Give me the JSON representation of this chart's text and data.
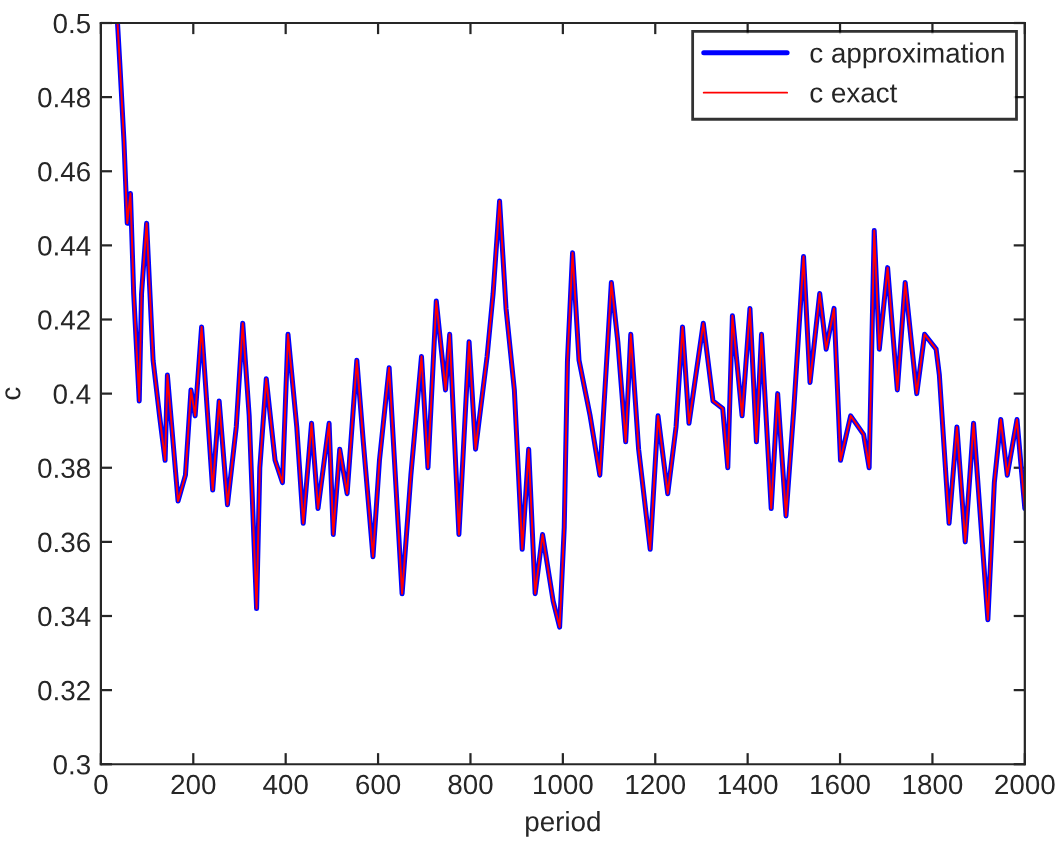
{
  "chart_data": {
    "type": "line",
    "xlabel": "period",
    "ylabel": "c",
    "xlim": [
      0,
      2000
    ],
    "xticks": [
      0,
      200,
      400,
      600,
      800,
      1000,
      1200,
      1400,
      1600,
      1800,
      2000
    ],
    "ylim": [
      0.3,
      0.5
    ],
    "yticks": [
      0.3,
      0.32,
      0.34,
      0.36,
      0.38,
      0.4,
      0.42,
      0.44,
      0.46,
      0.48,
      0.5
    ],
    "grid": false,
    "legend": "top right",
    "line_style": "solid",
    "marker": "none",
    "x": [
      36,
      41,
      50,
      57,
      64,
      71,
      83,
      88,
      99,
      113,
      127,
      139,
      144,
      167,
      183,
      195,
      204,
      218,
      242,
      256,
      274,
      293,
      307,
      321,
      337,
      344,
      358,
      377,
      393,
      405,
      424,
      438,
      456,
      470,
      494,
      503,
      517,
      533,
      554,
      568,
      589,
      603,
      624,
      652,
      671,
      694,
      708,
      726,
      746,
      755,
      775,
      797,
      811,
      836,
      849,
      863,
      877,
      895,
      912,
      926,
      940,
      956,
      979,
      993,
      1003,
      1010,
      1021,
      1035,
      1059,
      1080,
      1105,
      1119,
      1136,
      1147,
      1164,
      1189,
      1206,
      1227,
      1245,
      1259,
      1273,
      1304,
      1325,
      1346,
      1357,
      1367,
      1388,
      1405,
      1419,
      1430,
      1451,
      1465,
      1483,
      1500,
      1521,
      1535,
      1556,
      1570,
      1587,
      1601,
      1623,
      1651,
      1663,
      1674,
      1685,
      1703,
      1724,
      1741,
      1766,
      1783,
      1808,
      1815,
      1836,
      1853,
      1871,
      1889,
      1920,
      1934,
      1948,
      1962,
      1983,
      2000
    ],
    "series": [
      {
        "name": "c approximation",
        "color": "#0000ff",
        "values": [
          0.5,
          0.489,
          0.468,
          0.446,
          0.454,
          0.427,
          0.398,
          0.427,
          0.446,
          0.409,
          0.394,
          0.382,
          0.405,
          0.371,
          0.378,
          0.401,
          0.394,
          0.418,
          0.374,
          0.398,
          0.37,
          0.391,
          0.419,
          0.394,
          0.342,
          0.38,
          0.404,
          0.382,
          0.376,
          0.416,
          0.391,
          0.365,
          0.392,
          0.369,
          0.392,
          0.362,
          0.385,
          0.373,
          0.409,
          0.387,
          0.356,
          0.382,
          0.407,
          0.346,
          0.378,
          0.41,
          0.38,
          0.425,
          0.401,
          0.416,
          0.362,
          0.414,
          0.385,
          0.41,
          0.427,
          0.452,
          0.423,
          0.401,
          0.358,
          0.385,
          0.346,
          0.362,
          0.344,
          0.337,
          0.364,
          0.409,
          0.438,
          0.409,
          0.394,
          0.378,
          0.43,
          0.414,
          0.387,
          0.416,
          0.385,
          0.358,
          0.394,
          0.373,
          0.391,
          0.418,
          0.392,
          0.419,
          0.398,
          0.396,
          0.38,
          0.421,
          0.394,
          0.423,
          0.387,
          0.416,
          0.369,
          0.4,
          0.367,
          0.396,
          0.437,
          0.403,
          0.427,
          0.412,
          0.423,
          0.382,
          0.394,
          0.389,
          0.38,
          0.444,
          0.412,
          0.434,
          0.401,
          0.43,
          0.4,
          0.416,
          0.412,
          0.405,
          0.365,
          0.391,
          0.36,
          0.392,
          0.339,
          0.376,
          0.393,
          0.378,
          0.393,
          0.369
        ]
      },
      {
        "name": "c exact",
        "color": "#ff0000",
        "values": [
          0.5,
          0.489,
          0.468,
          0.446,
          0.454,
          0.427,
          0.398,
          0.427,
          0.446,
          0.409,
          0.394,
          0.382,
          0.405,
          0.371,
          0.378,
          0.401,
          0.394,
          0.418,
          0.374,
          0.398,
          0.37,
          0.391,
          0.419,
          0.394,
          0.342,
          0.38,
          0.404,
          0.382,
          0.376,
          0.416,
          0.391,
          0.365,
          0.392,
          0.369,
          0.392,
          0.362,
          0.385,
          0.373,
          0.409,
          0.387,
          0.356,
          0.382,
          0.407,
          0.346,
          0.378,
          0.41,
          0.38,
          0.425,
          0.401,
          0.416,
          0.362,
          0.414,
          0.385,
          0.41,
          0.427,
          0.452,
          0.423,
          0.401,
          0.358,
          0.385,
          0.346,
          0.362,
          0.344,
          0.337,
          0.364,
          0.409,
          0.438,
          0.409,
          0.394,
          0.378,
          0.43,
          0.414,
          0.387,
          0.416,
          0.385,
          0.358,
          0.394,
          0.373,
          0.391,
          0.418,
          0.392,
          0.419,
          0.398,
          0.396,
          0.38,
          0.421,
          0.394,
          0.423,
          0.387,
          0.416,
          0.369,
          0.4,
          0.367,
          0.396,
          0.437,
          0.403,
          0.427,
          0.412,
          0.423,
          0.382,
          0.394,
          0.389,
          0.38,
          0.444,
          0.412,
          0.434,
          0.401,
          0.43,
          0.4,
          0.416,
          0.412,
          0.405,
          0.365,
          0.391,
          0.36,
          0.392,
          0.339,
          0.376,
          0.393,
          0.378,
          0.393,
          0.369
        ]
      }
    ]
  }
}
